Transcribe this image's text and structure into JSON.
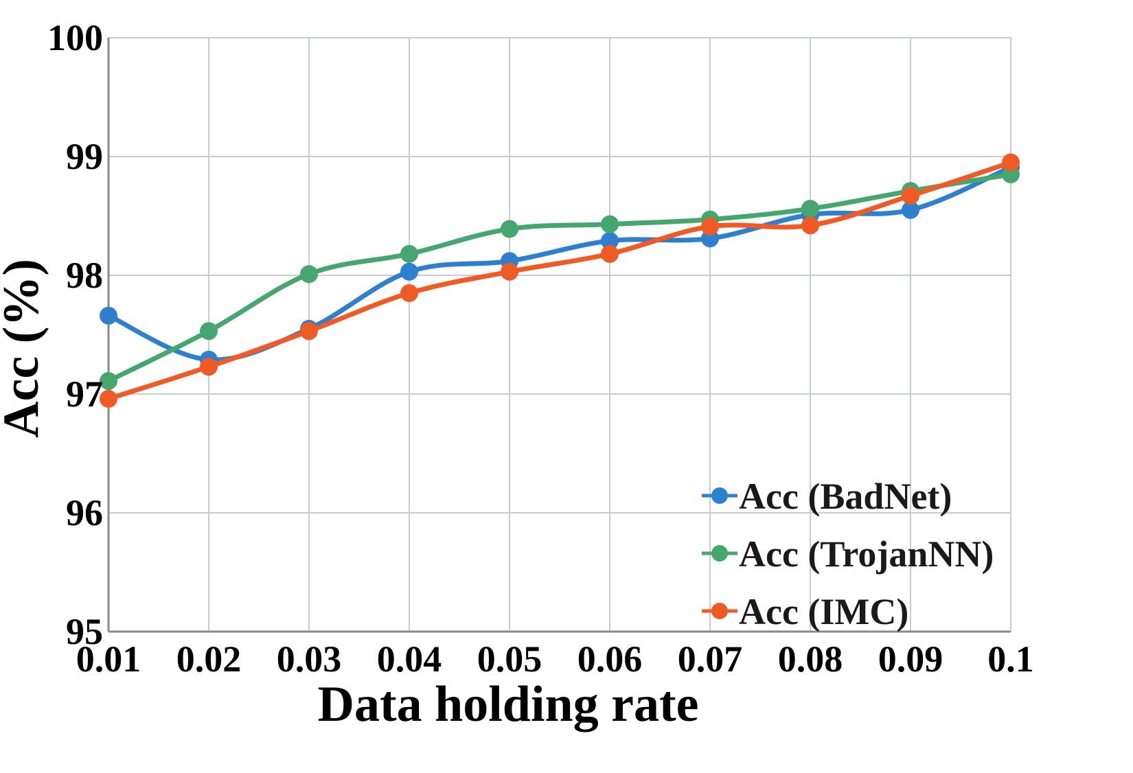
{
  "chart_data": {
    "type": "line",
    "title": "",
    "xlabel": "Data holding rate",
    "ylabel": "Acc (%)",
    "x": [
      0.01,
      0.02,
      0.03,
      0.04,
      0.05,
      0.06,
      0.07,
      0.08,
      0.09,
      0.1
    ],
    "x_tick_labels": [
      "0.01",
      "0.02",
      "0.03",
      "0.04",
      "0.05",
      "0.06",
      "0.07",
      "0.08",
      "0.09",
      "0.1"
    ],
    "ylim": [
      95,
      100
    ],
    "y_ticks": [
      95,
      96,
      97,
      98,
      99,
      100
    ],
    "y_tick_labels": [
      "95",
      "96",
      "97",
      "98",
      "99",
      "100"
    ],
    "grid": true,
    "legend_position": "bottom-right",
    "series": [
      {
        "name": "Acc (BadNet)",
        "color": "#2f7fcf",
        "values": [
          97.66,
          97.29,
          97.55,
          98.03,
          98.12,
          98.29,
          98.31,
          98.51,
          98.55,
          98.91
        ]
      },
      {
        "name": "Acc (TrojanNN)",
        "color": "#45a66e",
        "values": [
          97.11,
          97.53,
          98.01,
          98.18,
          98.39,
          98.43,
          98.47,
          98.56,
          98.71,
          98.85
        ]
      },
      {
        "name": "Acc (IMC)",
        "color": "#f05a24",
        "values": [
          96.96,
          97.23,
          97.53,
          97.85,
          98.03,
          98.18,
          98.41,
          98.42,
          98.67,
          98.95
        ]
      }
    ]
  }
}
